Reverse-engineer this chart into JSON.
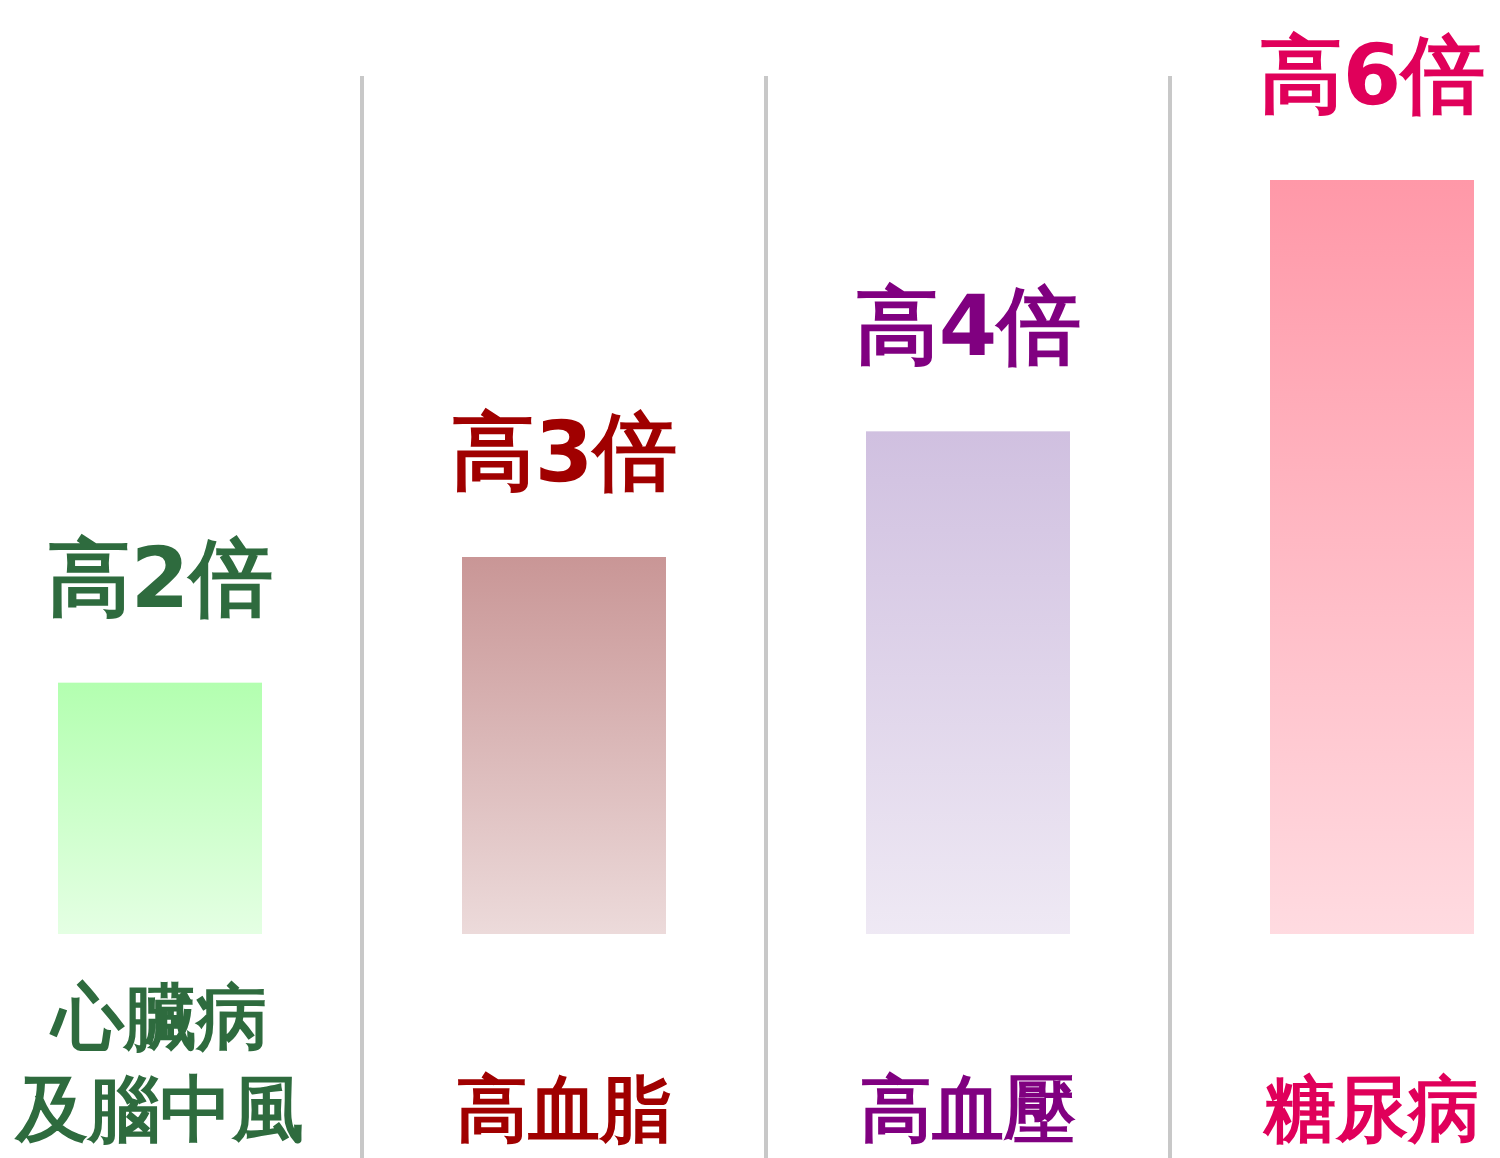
{
  "chart_data": {
    "type": "bar",
    "categories": [
      "心臟病及腦中風",
      "高血脂",
      "高血壓",
      "糖尿病"
    ],
    "values": [
      2,
      3,
      4,
      6
    ],
    "colors": [
      "#b3ffb0",
      "#c99696",
      "#d0c0e0",
      "#ff98a8"
    ],
    "value_labels": [
      "高2倍",
      "高3倍",
      "高4倍",
      "高6倍"
    ]
  }
}
